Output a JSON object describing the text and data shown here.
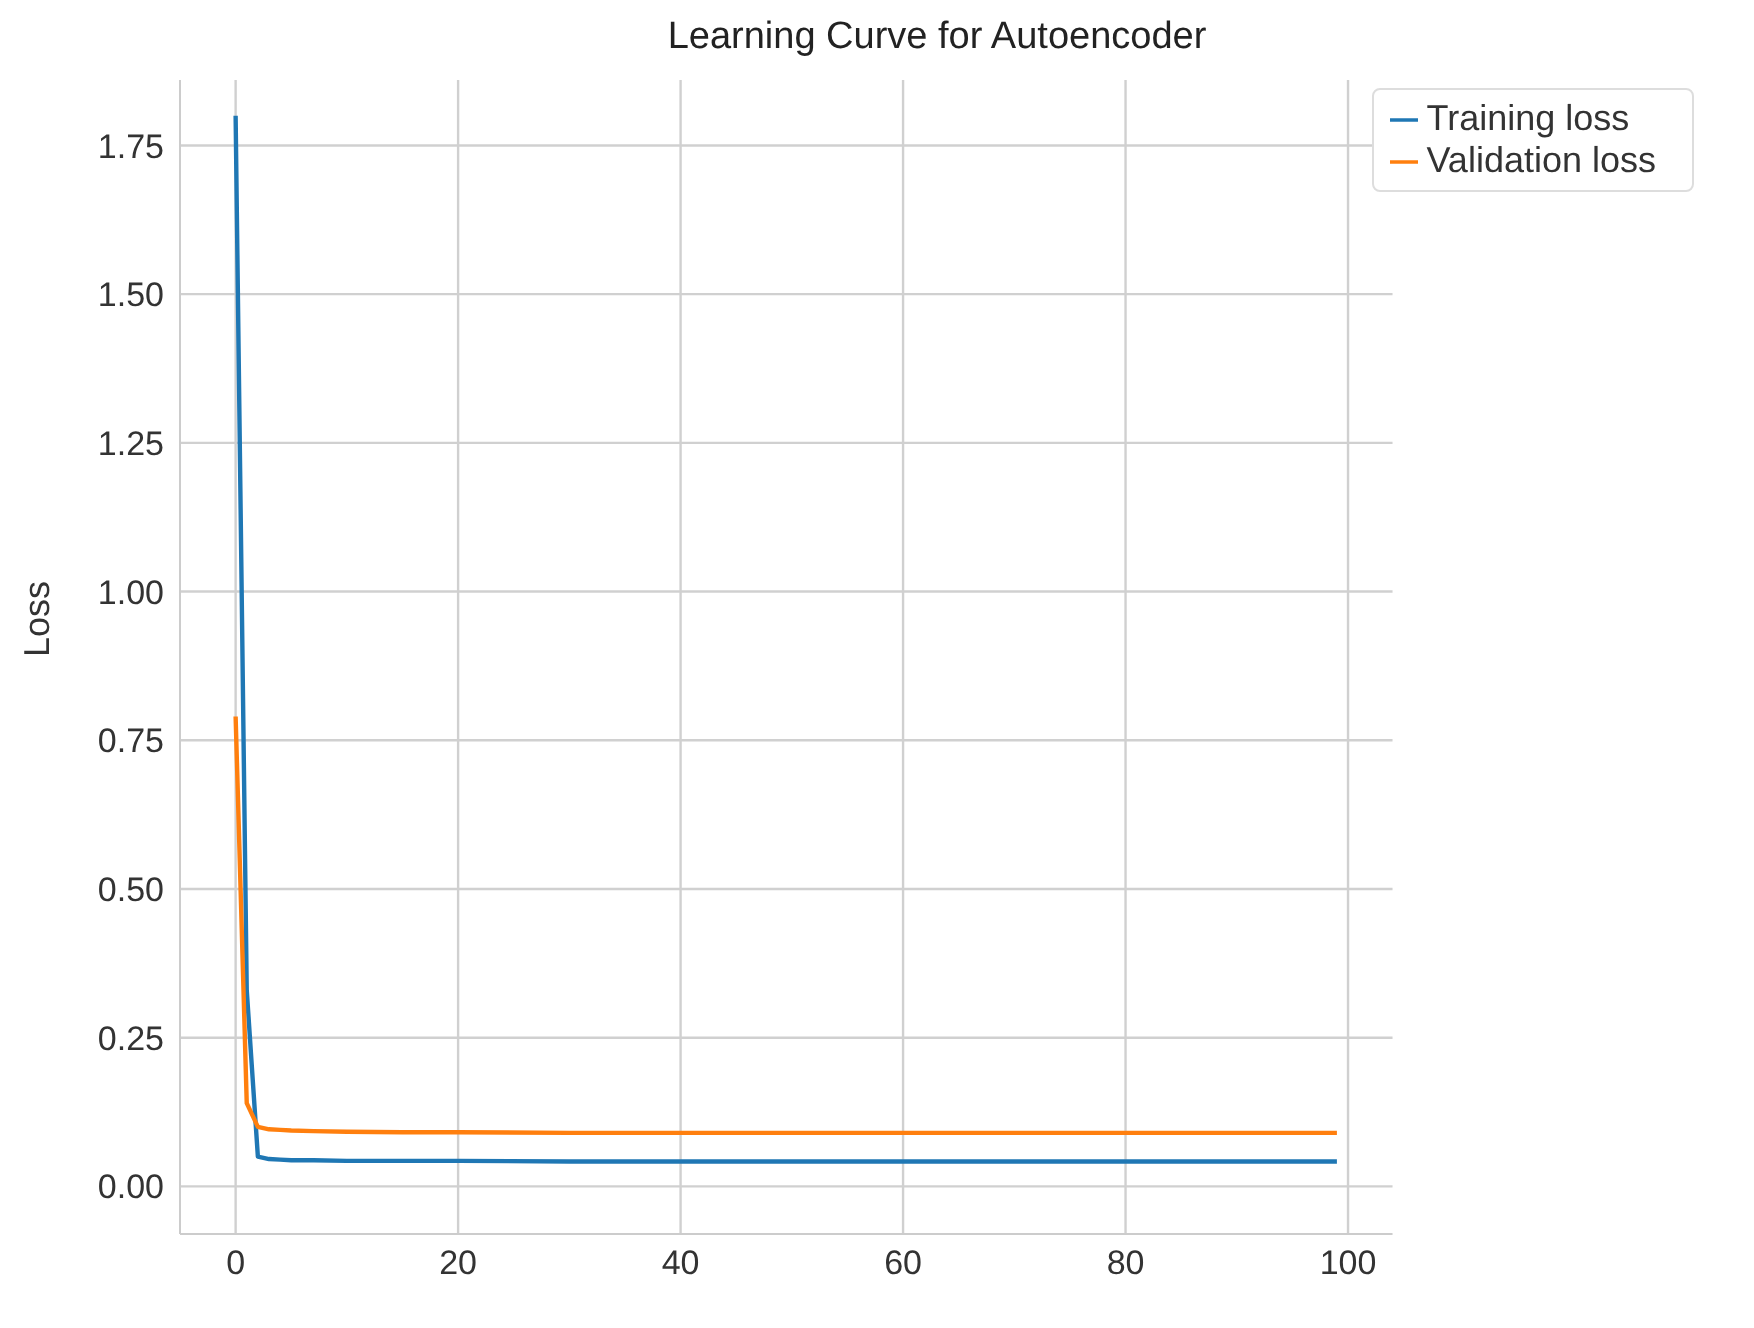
{
  "chart_data": {
    "type": "line",
    "title": "Learning Curve for Autoencoder",
    "ylabel": "Loss",
    "x": [
      0,
      1,
      2,
      3,
      4,
      5,
      7,
      10,
      15,
      20,
      30,
      40,
      50,
      60,
      70,
      80,
      90,
      99
    ],
    "series": [
      {
        "name": "Training loss",
        "color": "#1f77b4",
        "values": [
          1.8,
          0.33,
          0.05,
          0.046,
          0.045,
          0.044,
          0.044,
          0.043,
          0.043,
          0.043,
          0.042,
          0.042,
          0.042,
          0.042,
          0.042,
          0.042,
          0.042,
          0.042
        ]
      },
      {
        "name": "Validation loss",
        "color": "#ff7f0e",
        "values": [
          0.79,
          0.14,
          0.1,
          0.096,
          0.095,
          0.094,
          0.093,
          0.092,
          0.091,
          0.091,
          0.09,
          0.09,
          0.09,
          0.09,
          0.09,
          0.09,
          0.09,
          0.09
        ]
      }
    ],
    "xlim": [
      -5,
      104
    ],
    "xticks": [
      0,
      20,
      40,
      60,
      80,
      100
    ],
    "ylim": [
      -0.08,
      1.86
    ],
    "yticks": [
      {
        "value": 0,
        "label": "0.00"
      },
      {
        "value": 0.25,
        "label": "0.25"
      },
      {
        "value": 0.5,
        "label": "0.50"
      },
      {
        "value": 0.75,
        "label": "0.75"
      },
      {
        "value": 1,
        "label": "1.00"
      },
      {
        "value": 1.25,
        "label": "1.25"
      },
      {
        "value": 1.5,
        "label": "1.50"
      },
      {
        "value": 1.75,
        "label": "1.75"
      }
    ],
    "grid": true,
    "legend": "top right",
    "marker": "none",
    "line_style": "solid"
  }
}
